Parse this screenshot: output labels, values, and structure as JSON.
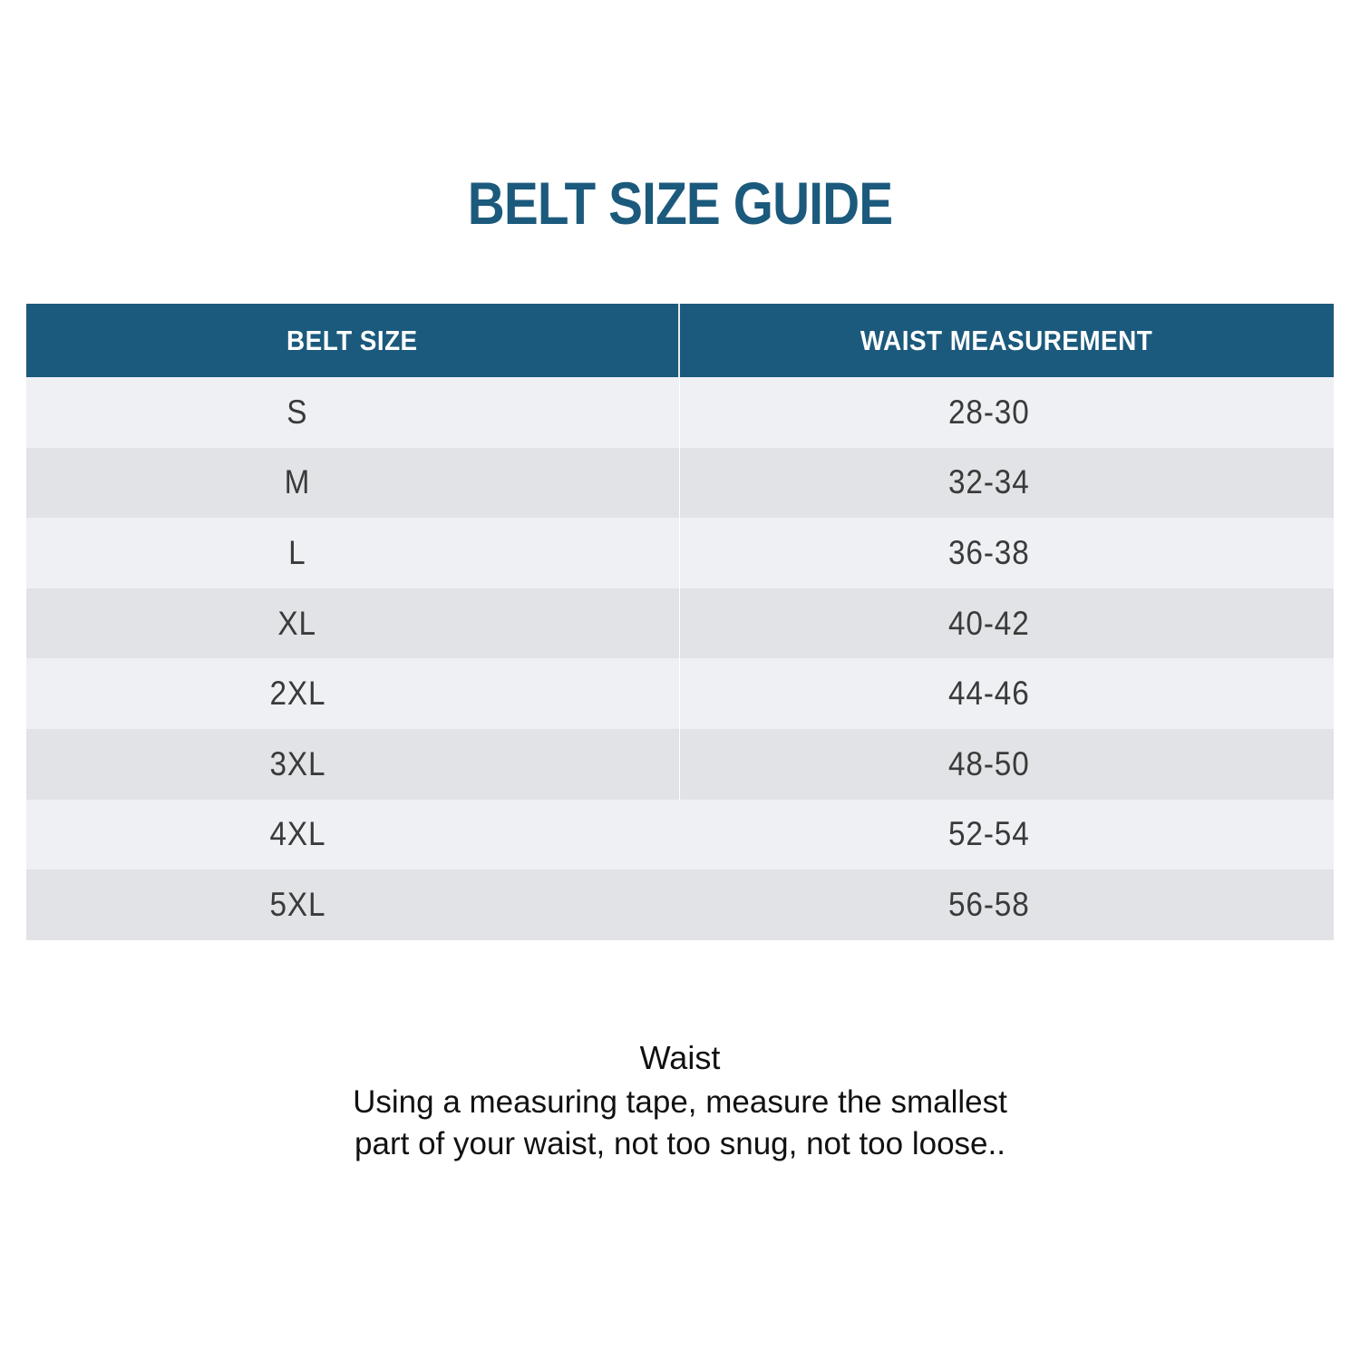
{
  "title": "BELT SIZE GUIDE",
  "table": {
    "headers": {
      "size": "BELT SIZE",
      "waist": "WAIST MEASUREMENT"
    },
    "rows": [
      {
        "size": "S",
        "waist": "28-30"
      },
      {
        "size": "M",
        "waist": "32-34"
      },
      {
        "size": "L",
        "waist": "36-38"
      },
      {
        "size": "XL",
        "waist": "40-42"
      },
      {
        "size": "2XL",
        "waist": "44-46"
      },
      {
        "size": "3XL",
        "waist": "48-50"
      },
      {
        "size": "4XL",
        "waist": "52-54"
      },
      {
        "size": "5XL",
        "waist": "56-58"
      }
    ]
  },
  "instructions": {
    "heading": "Waist",
    "body": "Using a measuring tape, measure the smallest part of your waist, not too snug, not too loose.."
  },
  "colors": {
    "header_bg": "#1b5a7c",
    "title": "#1b5a7c",
    "row_light": "#eef0f4",
    "row_dark": "#e2e3e6"
  }
}
